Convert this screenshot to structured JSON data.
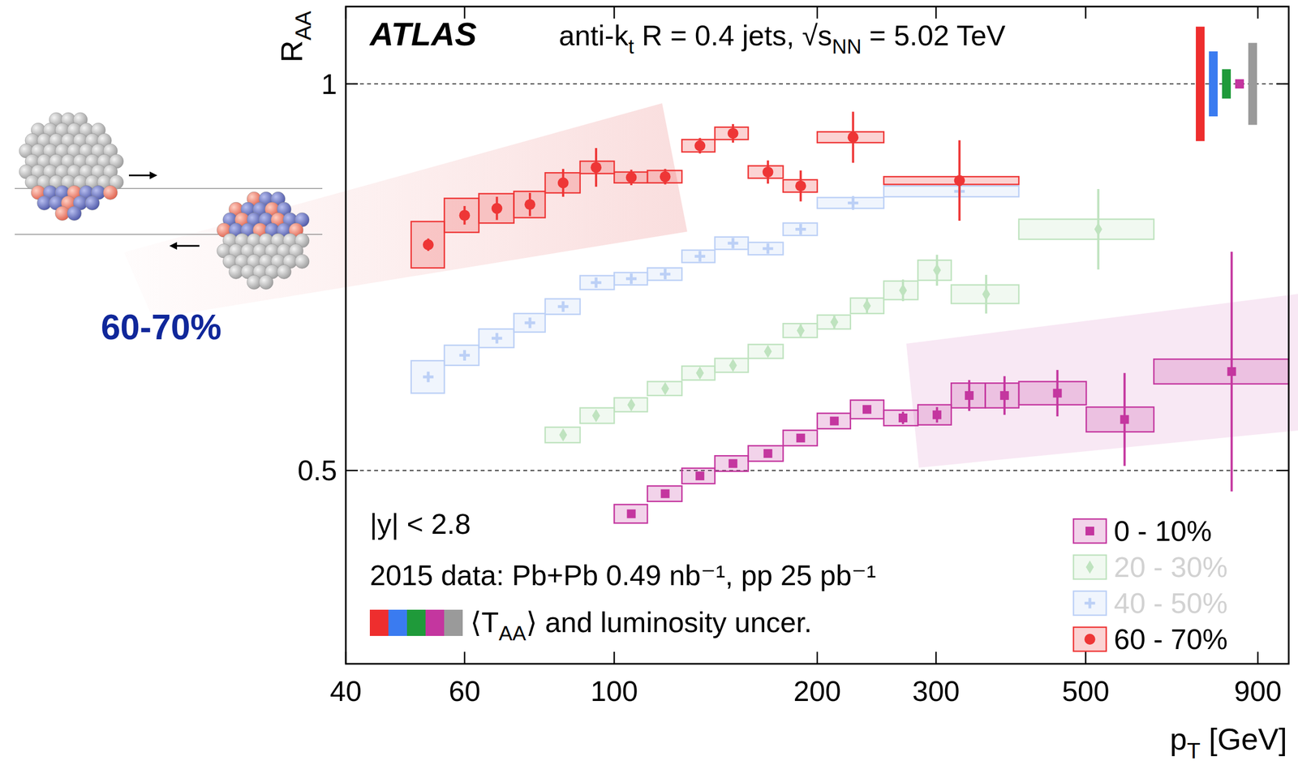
{
  "chart_data": {
    "type": "scatter",
    "title": "ATLAS",
    "subtitle": [
      "anti-k",
      "t",
      " R = 0.4 jets, √s",
      "NN",
      " = 5.02 TeV"
    ],
    "x_label": [
      "p",
      "T",
      " [GeV]"
    ],
    "y_label": [
      "R",
      "AA"
    ],
    "annotations": [
      "|y| < 2.8",
      "2015 data: Pb+Pb 0.49 nb⁻¹, pp 25 pb⁻¹",
      "60-70%"
    ],
    "log": "x",
    "xlim": [
      40,
      1000
    ],
    "xticks": [
      40,
      60,
      100,
      200,
      300,
      500,
      900
    ],
    "ylim": [
      0.25,
      1.1
    ],
    "yticks": [
      0.5,
      1
    ],
    "grid": true,
    "legend": "bottom-right",
    "norm_uncertainty": {
      "label": [
        "⟨T",
        "AA",
        "⟩ and luminosity uncer."
      ],
      "colors": [
        "#ee2e2e",
        "#3a7bf0",
        "#1f9a3a",
        "#c4369f",
        "#9a9a9a"
      ],
      "values": [
        0.074,
        0.042,
        0.019,
        0.006,
        0.053
      ],
      "reference": 1
    },
    "series": [
      {
        "name": "0 - 10%",
        "color": "#c4369f",
        "marker": "square",
        "x": [
          106,
          119,
          134,
          150,
          169,
          189,
          212,
          237,
          268,
          301,
          336,
          379,
          454,
          571,
          823
        ],
        "values": [
          0.444,
          0.47,
          0.493,
          0.509,
          0.522,
          0.542,
          0.564,
          0.579,
          0.568,
          0.572,
          0.597,
          0.597,
          0.6,
          0.566,
          0.628
        ],
        "stat_errors": [
          0.004,
          0.004,
          0.004,
          0.004,
          0.004,
          0.004,
          0.004,
          0.005,
          0.008,
          0.01,
          0.02,
          0.025,
          0.03,
          0.06,
          0.155
        ],
        "sys_errors": [
          0.012,
          0.01,
          0.01,
          0.01,
          0.01,
          0.01,
          0.01,
          0.012,
          0.01,
          0.013,
          0.016,
          0.016,
          0.015,
          0.016,
          0.016
        ],
        "bin_edges": [
          100,
          112,
          126,
          141,
          158,
          178,
          200,
          224,
          251,
          282,
          316,
          355,
          398,
          501,
          631,
          1000
        ]
      },
      {
        "name": "20 - 30%",
        "color": "#bfe3bf",
        "marker": "diamond",
        "x": [
          84,
          94,
          106,
          119,
          134,
          150,
          169,
          189,
          212,
          237,
          268,
          301,
          356,
          522
        ],
        "values": [
          0.546,
          0.571,
          0.585,
          0.606,
          0.626,
          0.636,
          0.654,
          0.681,
          0.692,
          0.713,
          0.733,
          0.759,
          0.728,
          0.812
        ],
        "stat_errors": [
          0.005,
          0.005,
          0.005,
          0.005,
          0.005,
          0.005,
          0.006,
          0.008,
          0.008,
          0.01,
          0.014,
          0.02,
          0.025,
          0.052
        ],
        "sys_errors": [
          0.01,
          0.01,
          0.009,
          0.009,
          0.009,
          0.009,
          0.009,
          0.009,
          0.009,
          0.01,
          0.012,
          0.013,
          0.012,
          0.013
        ],
        "bin_edges": [
          79,
          89,
          100,
          112,
          126,
          141,
          158,
          178,
          200,
          224,
          251,
          282,
          316,
          398,
          631
        ]
      },
      {
        "name": "40 - 50%",
        "color": "#bcd0f6",
        "marker": "plus",
        "x": [
          53,
          60,
          67,
          75,
          84,
          94,
          106,
          119,
          134,
          150,
          169,
          189,
          226,
          325
        ],
        "values": [
          0.621,
          0.649,
          0.671,
          0.691,
          0.712,
          0.743,
          0.748,
          0.754,
          0.777,
          0.794,
          0.787,
          0.812,
          0.846,
          0.861
        ],
        "stat_errors": [
          0.004,
          0.004,
          0.004,
          0.004,
          0.004,
          0.004,
          0.004,
          0.004,
          0.005,
          0.005,
          0.006,
          0.007,
          0.009,
          0.006
        ],
        "sys_errors": [
          0.021,
          0.013,
          0.012,
          0.012,
          0.01,
          0.009,
          0.008,
          0.008,
          0.008,
          0.008,
          0.008,
          0.008,
          0.007,
          0.007
        ],
        "bin_edges": [
          50,
          56,
          63,
          71,
          79,
          89,
          100,
          112,
          126,
          141,
          158,
          178,
          200,
          251,
          398
        ]
      },
      {
        "name": "60 - 70%",
        "color": "#ee3636",
        "marker": "circle",
        "x": [
          53,
          60,
          67,
          75,
          84,
          94,
          106,
          119,
          134,
          150,
          169,
          189,
          226,
          325
        ],
        "values": [
          0.792,
          0.83,
          0.839,
          0.844,
          0.872,
          0.892,
          0.879,
          0.88,
          0.92,
          0.936,
          0.886,
          0.868,
          0.931,
          0.875
        ],
        "stat_errors": [
          0.008,
          0.012,
          0.015,
          0.015,
          0.018,
          0.025,
          0.01,
          0.01,
          0.01,
          0.012,
          0.015,
          0.02,
          0.033,
          0.052
        ],
        "sys_errors": [
          0.03,
          0.022,
          0.019,
          0.017,
          0.013,
          0.008,
          0.007,
          0.008,
          0.008,
          0.008,
          0.008,
          0.008,
          0.007,
          0.005
        ],
        "bin_edges": [
          50,
          56,
          63,
          71,
          79,
          89,
          100,
          112,
          126,
          141,
          158,
          178,
          200,
          251,
          398
        ]
      }
    ]
  }
}
